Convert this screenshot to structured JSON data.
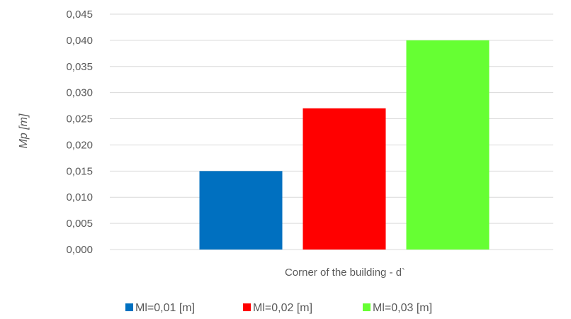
{
  "chart_data": {
    "type": "bar",
    "title": "",
    "xlabel": "Corner of the building - d`",
    "ylabel": "Mp [m]",
    "categories": [
      "Corner of the building - d`"
    ],
    "series": [
      {
        "name": "Ml=0,01 [m]",
        "values": [
          0.015
        ],
        "color": "#0070c0"
      },
      {
        "name": "Ml=0,02 [m]",
        "values": [
          0.027
        ],
        "color": "#ff0000"
      },
      {
        "name": "Ml=0,03 [m]",
        "values": [
          0.04
        ],
        "color": "#66ff33"
      }
    ],
    "ylim": [
      0,
      0.045
    ],
    "yticks": [
      0,
      0.005,
      0.01,
      0.015,
      0.02,
      0.025,
      0.03,
      0.035,
      0.04,
      0.045
    ],
    "ytick_labels": [
      "0,000",
      "0,005",
      "0,010",
      "0,015",
      "0,020",
      "0,025",
      "0,030",
      "0,035",
      "0,040",
      "0,045"
    ],
    "grid": true,
    "legend_position": "bottom"
  }
}
